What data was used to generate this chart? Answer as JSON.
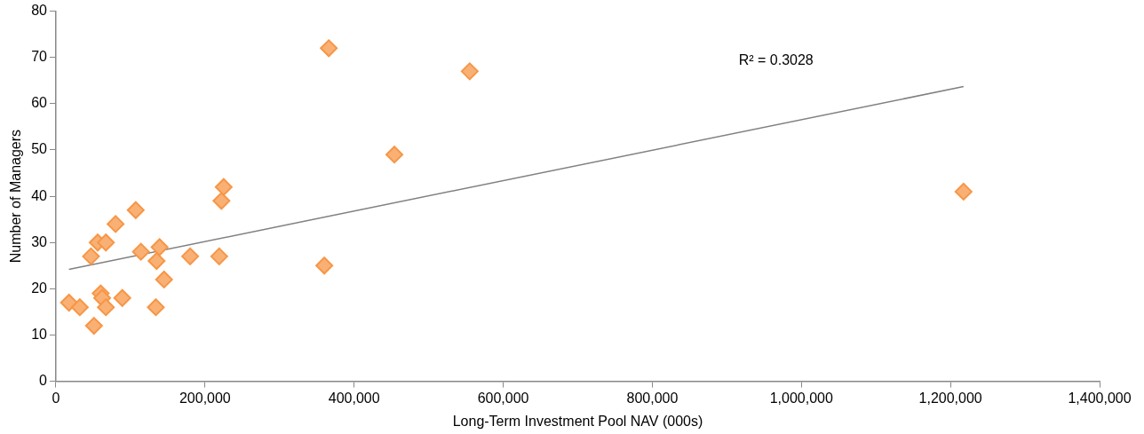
{
  "chart_data": {
    "type": "scatter",
    "xlabel": "Long-Term Investment Pool NAV (000s)",
    "ylabel": "Number of Managers",
    "xlim": [
      0,
      1400000
    ],
    "xticks": [
      {
        "value": 0,
        "label": "0"
      },
      {
        "value": 200000,
        "label": "200,000"
      },
      {
        "value": 400000,
        "label": "400,000"
      },
      {
        "value": 600000,
        "label": "600,000"
      },
      {
        "value": 800000,
        "label": "800,000"
      },
      {
        "value": 1000000,
        "label": "1,000,000"
      },
      {
        "value": 1200000,
        "label": "1,200,000"
      },
      {
        "value": 1400000,
        "label": "1,400,000"
      }
    ],
    "ylim": [
      0,
      80
    ],
    "yticks": [
      0,
      10,
      20,
      30,
      40,
      50,
      60,
      70,
      80
    ],
    "grid": false,
    "legend": false,
    "annotations": [
      "R² = 0.3028"
    ],
    "series": [
      {
        "color": "#f79646",
        "marker": "diamond",
        "x": [
          17500,
          32000,
          47000,
          51000,
          56000,
          60000,
          62000,
          67000,
          67000,
          80000,
          89000,
          107000,
          114000,
          134000,
          135000,
          139000,
          145000,
          180000,
          219000,
          222000,
          225000,
          360000,
          366000,
          454000,
          555000,
          1217500
        ],
        "values": [
          17,
          16,
          27,
          12,
          30,
          19,
          18,
          30,
          16,
          34,
          18,
          37,
          28,
          16,
          26,
          29,
          22,
          27,
          27,
          39,
          42,
          25,
          72,
          49,
          67,
          41
        ]
      },
      {
        "type": "line",
        "marker": "none",
        "color": "#808080",
        "x": [
          17500,
          1217500
        ],
        "values": [
          24.2,
          63.7
        ]
      }
    ]
  }
}
